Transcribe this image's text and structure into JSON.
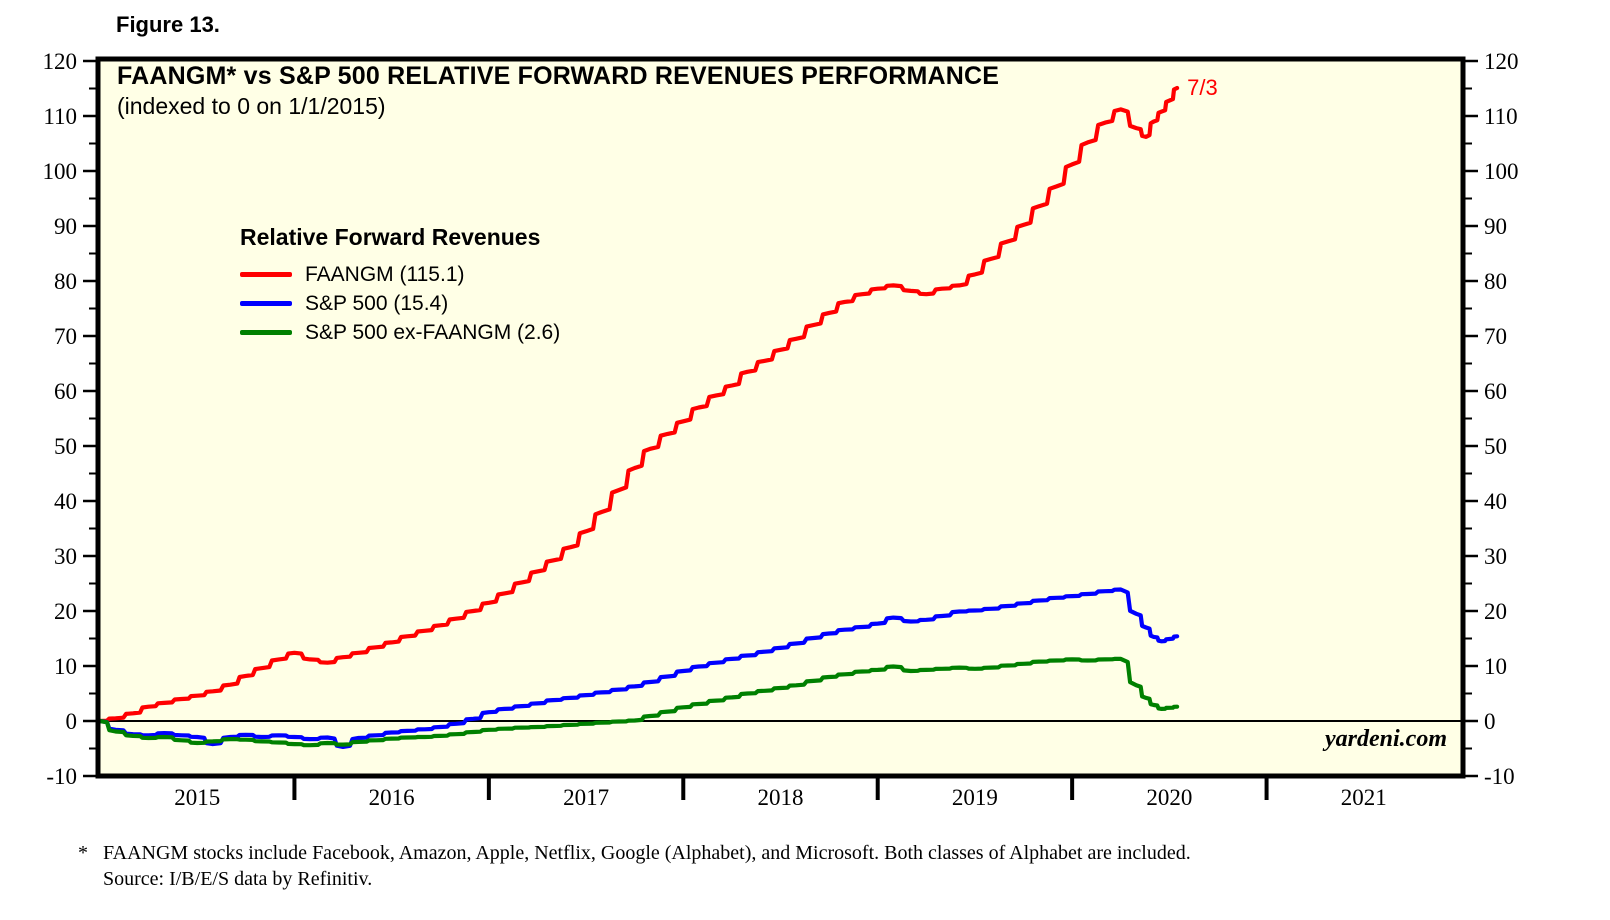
{
  "chart_data": {
    "type": "line",
    "figure_label": "Figure 13.",
    "title": "FAANGM* vs S&P 500 RELATIVE FORWARD REVENUES PERFORMANCE",
    "subtitle": "(indexed to 0 on 1/1/2015)",
    "branding": "yardeni.com",
    "annotation": {
      "text": "7/3",
      "color": "#FF0000"
    },
    "footnote": {
      "asterisk": "*",
      "line1": "FAANGM stocks include Facebook, Amazon, Apple, Netflix, Google (Alphabet), and Microsoft. Both classes of Alphabet are included.",
      "line2": "Source: I/B/E/S data by Refinitiv."
    },
    "colors": {
      "background": "#FFFFE6",
      "frame": "#000000",
      "zero_line": "#000000"
    },
    "legend": {
      "title": "Relative Forward Revenues",
      "items": [
        {
          "label": "FAANGM (115.1)",
          "color": "#FF0000"
        },
        {
          "label": "S&P 500 (15.4)",
          "color": "#0000FF"
        },
        {
          "label": "S&P 500 ex-FAANGM (2.6)",
          "color": "#008000"
        }
      ]
    },
    "y_axis": {
      "min": -10,
      "max": 120,
      "major_step": 10,
      "minor_step": 5,
      "label_sides": "both",
      "grid": false
    },
    "x_axis": {
      "start": 2015,
      "end": 2022,
      "year_labels": [
        "2015",
        "2016",
        "2017",
        "2018",
        "2019",
        "2020",
        "2021"
      ],
      "grid": false
    },
    "series": [
      {
        "name": "FAANGM",
        "color": "#FF0000",
        "latest_value": 115.1,
        "latest_date_label": "7/3",
        "points": [
          [
            2015.0,
            0
          ],
          [
            2015.08,
            0.5
          ],
          [
            2015.17,
            1.4
          ],
          [
            2015.25,
            2.6
          ],
          [
            2015.33,
            3.3
          ],
          [
            2015.42,
            4.0
          ],
          [
            2015.5,
            4.6
          ],
          [
            2015.58,
            5.4
          ],
          [
            2015.67,
            6.6
          ],
          [
            2015.75,
            8.2
          ],
          [
            2015.83,
            9.6
          ],
          [
            2015.92,
            11.2
          ],
          [
            2016.0,
            12.4
          ],
          [
            2016.08,
            11.2
          ],
          [
            2016.17,
            10.6
          ],
          [
            2016.25,
            11.6
          ],
          [
            2016.33,
            12.4
          ],
          [
            2016.42,
            13.4
          ],
          [
            2016.5,
            14.3
          ],
          [
            2016.58,
            15.4
          ],
          [
            2016.67,
            16.4
          ],
          [
            2016.75,
            17.4
          ],
          [
            2016.83,
            18.6
          ],
          [
            2016.92,
            20.0
          ],
          [
            2017.0,
            21.5
          ],
          [
            2017.08,
            23.2
          ],
          [
            2017.17,
            25.2
          ],
          [
            2017.25,
            27.2
          ],
          [
            2017.33,
            29.2
          ],
          [
            2017.42,
            31.6
          ],
          [
            2017.5,
            34.5
          ],
          [
            2017.58,
            38.0
          ],
          [
            2017.67,
            42.0
          ],
          [
            2017.75,
            46.0
          ],
          [
            2017.83,
            49.5
          ],
          [
            2017.92,
            52.2
          ],
          [
            2018.0,
            54.5
          ],
          [
            2018.08,
            57.0
          ],
          [
            2018.17,
            59.2
          ],
          [
            2018.25,
            61.0
          ],
          [
            2018.33,
            63.5
          ],
          [
            2018.42,
            65.5
          ],
          [
            2018.5,
            67.5
          ],
          [
            2018.58,
            69.5
          ],
          [
            2018.67,
            72.0
          ],
          [
            2018.75,
            74.2
          ],
          [
            2018.83,
            76.2
          ],
          [
            2018.92,
            77.6
          ],
          [
            2019.0,
            78.6
          ],
          [
            2019.08,
            79.2
          ],
          [
            2019.17,
            78.2
          ],
          [
            2019.25,
            77.6
          ],
          [
            2019.33,
            78.6
          ],
          [
            2019.42,
            79.2
          ],
          [
            2019.5,
            81.2
          ],
          [
            2019.58,
            84.0
          ],
          [
            2019.67,
            87.2
          ],
          [
            2019.75,
            90.2
          ],
          [
            2019.83,
            93.6
          ],
          [
            2019.92,
            97.2
          ],
          [
            2020.0,
            101.2
          ],
          [
            2020.08,
            105.2
          ],
          [
            2020.17,
            108.8
          ],
          [
            2020.25,
            111.2
          ],
          [
            2020.33,
            107.8
          ],
          [
            2020.38,
            106.2
          ],
          [
            2020.42,
            109.0
          ],
          [
            2020.46,
            110.8
          ],
          [
            2020.5,
            112.8
          ],
          [
            2020.54,
            115.1
          ]
        ]
      },
      {
        "name": "S&P 500",
        "color": "#0000FF",
        "latest_value": 15.4,
        "points": [
          [
            2015.0,
            0
          ],
          [
            2015.08,
            -1.6
          ],
          [
            2015.17,
            -2.4
          ],
          [
            2015.25,
            -2.6
          ],
          [
            2015.33,
            -2.2
          ],
          [
            2015.42,
            -2.6
          ],
          [
            2015.5,
            -2.9
          ],
          [
            2015.58,
            -4.2
          ],
          [
            2015.67,
            -2.9
          ],
          [
            2015.75,
            -2.5
          ],
          [
            2015.83,
            -2.9
          ],
          [
            2015.92,
            -2.6
          ],
          [
            2016.0,
            -2.9
          ],
          [
            2016.08,
            -3.3
          ],
          [
            2016.17,
            -3.0
          ],
          [
            2016.25,
            -4.7
          ],
          [
            2016.33,
            -3.1
          ],
          [
            2016.42,
            -2.6
          ],
          [
            2016.5,
            -2.1
          ],
          [
            2016.58,
            -1.8
          ],
          [
            2016.67,
            -1.5
          ],
          [
            2016.75,
            -1.1
          ],
          [
            2016.83,
            -0.5
          ],
          [
            2016.92,
            0.4
          ],
          [
            2017.0,
            1.6
          ],
          [
            2017.08,
            2.2
          ],
          [
            2017.17,
            2.7
          ],
          [
            2017.25,
            3.2
          ],
          [
            2017.33,
            3.8
          ],
          [
            2017.42,
            4.2
          ],
          [
            2017.5,
            4.7
          ],
          [
            2017.58,
            5.2
          ],
          [
            2017.67,
            5.7
          ],
          [
            2017.75,
            6.3
          ],
          [
            2017.83,
            7.1
          ],
          [
            2017.92,
            8.1
          ],
          [
            2018.0,
            9.1
          ],
          [
            2018.08,
            9.9
          ],
          [
            2018.17,
            10.6
          ],
          [
            2018.25,
            11.3
          ],
          [
            2018.33,
            11.9
          ],
          [
            2018.42,
            12.6
          ],
          [
            2018.5,
            13.3
          ],
          [
            2018.58,
            14.1
          ],
          [
            2018.67,
            15.1
          ],
          [
            2018.75,
            15.9
          ],
          [
            2018.83,
            16.6
          ],
          [
            2018.92,
            17.1
          ],
          [
            2019.0,
            17.7
          ],
          [
            2019.08,
            18.8
          ],
          [
            2019.17,
            18.1
          ],
          [
            2019.25,
            18.4
          ],
          [
            2019.33,
            19.1
          ],
          [
            2019.42,
            19.9
          ],
          [
            2019.5,
            20.1
          ],
          [
            2019.58,
            20.4
          ],
          [
            2019.67,
            20.9
          ],
          [
            2019.75,
            21.4
          ],
          [
            2019.83,
            21.9
          ],
          [
            2019.92,
            22.4
          ],
          [
            2020.0,
            22.7
          ],
          [
            2020.08,
            23.1
          ],
          [
            2020.17,
            23.6
          ],
          [
            2020.25,
            23.9
          ],
          [
            2020.33,
            19.5
          ],
          [
            2020.38,
            17.0
          ],
          [
            2020.42,
            15.3
          ],
          [
            2020.46,
            14.5
          ],
          [
            2020.5,
            14.9
          ],
          [
            2020.54,
            15.4
          ]
        ]
      },
      {
        "name": "S&P 500 ex-FAANGM",
        "color": "#008000",
        "latest_value": 2.6,
        "points": [
          [
            2015.0,
            0
          ],
          [
            2015.08,
            -1.9
          ],
          [
            2015.17,
            -2.7
          ],
          [
            2015.25,
            -3.1
          ],
          [
            2015.33,
            -2.9
          ],
          [
            2015.42,
            -3.5
          ],
          [
            2015.5,
            -4.0
          ],
          [
            2015.58,
            -3.7
          ],
          [
            2015.67,
            -3.3
          ],
          [
            2015.75,
            -3.4
          ],
          [
            2015.83,
            -3.7
          ],
          [
            2015.92,
            -3.9
          ],
          [
            2016.0,
            -4.2
          ],
          [
            2016.08,
            -4.4
          ],
          [
            2016.17,
            -4.0
          ],
          [
            2016.25,
            -4.3
          ],
          [
            2016.33,
            -3.8
          ],
          [
            2016.42,
            -3.5
          ],
          [
            2016.5,
            -3.2
          ],
          [
            2016.58,
            -3.0
          ],
          [
            2016.67,
            -2.9
          ],
          [
            2016.75,
            -2.7
          ],
          [
            2016.83,
            -2.4
          ],
          [
            2016.92,
            -2.0
          ],
          [
            2017.0,
            -1.6
          ],
          [
            2017.08,
            -1.4
          ],
          [
            2017.17,
            -1.2
          ],
          [
            2017.25,
            -1.1
          ],
          [
            2017.33,
            -0.9
          ],
          [
            2017.42,
            -0.7
          ],
          [
            2017.5,
            -0.5
          ],
          [
            2017.58,
            -0.3
          ],
          [
            2017.67,
            -0.1
          ],
          [
            2017.75,
            0.1
          ],
          [
            2017.83,
            0.9
          ],
          [
            2017.92,
            1.7
          ],
          [
            2018.0,
            2.5
          ],
          [
            2018.08,
            3.1
          ],
          [
            2018.17,
            3.7
          ],
          [
            2018.25,
            4.3
          ],
          [
            2018.33,
            5.0
          ],
          [
            2018.42,
            5.5
          ],
          [
            2018.5,
            6.0
          ],
          [
            2018.58,
            6.5
          ],
          [
            2018.67,
            7.3
          ],
          [
            2018.75,
            8.0
          ],
          [
            2018.83,
            8.5
          ],
          [
            2018.92,
            9.0
          ],
          [
            2019.0,
            9.3
          ],
          [
            2019.08,
            9.9
          ],
          [
            2019.17,
            9.1
          ],
          [
            2019.25,
            9.3
          ],
          [
            2019.33,
            9.5
          ],
          [
            2019.42,
            9.7
          ],
          [
            2019.5,
            9.5
          ],
          [
            2019.58,
            9.7
          ],
          [
            2019.67,
            10.1
          ],
          [
            2019.75,
            10.4
          ],
          [
            2019.83,
            10.8
          ],
          [
            2019.92,
            11.0
          ],
          [
            2020.0,
            11.2
          ],
          [
            2020.08,
            11.0
          ],
          [
            2020.17,
            11.2
          ],
          [
            2020.25,
            11.3
          ],
          [
            2020.33,
            6.5
          ],
          [
            2020.38,
            4.2
          ],
          [
            2020.42,
            2.9
          ],
          [
            2020.46,
            2.2
          ],
          [
            2020.5,
            2.4
          ],
          [
            2020.54,
            2.6
          ]
        ]
      }
    ]
  }
}
